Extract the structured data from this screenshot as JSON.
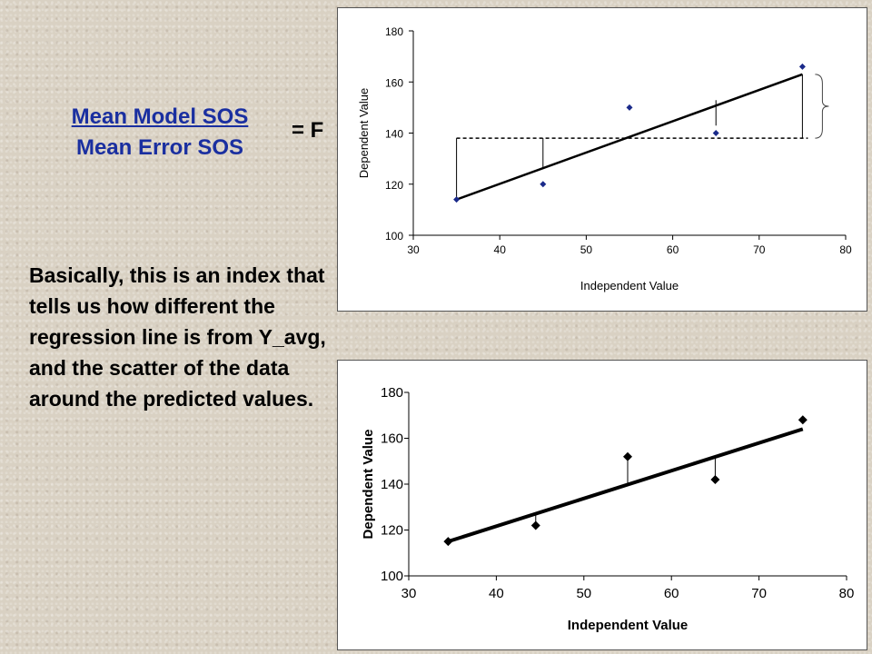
{
  "formula": {
    "numerator": "Mean Model SOS",
    "denominator": "Mean Error SOS",
    "equals": "= F"
  },
  "description": "Basically, this is an index that tells us how different the regression line is from Y_avg, and the scatter of the data around the predicted values.",
  "colors": {
    "formula_text": "#1a2fa0",
    "points": "#1a2a8a",
    "line": "#000000"
  },
  "chart_data": [
    {
      "type": "scatter",
      "title": "",
      "xlabel": "Independent Value",
      "ylabel": "Dependent Value",
      "xlim": [
        30,
        80
      ],
      "ylim": [
        100,
        180
      ],
      "xticks": [
        "30",
        "40",
        "50",
        "60",
        "70",
        "80"
      ],
      "yticks": [
        "100",
        "120",
        "140",
        "160",
        "180"
      ],
      "points": [
        {
          "x": 35,
          "y": 114
        },
        {
          "x": 45,
          "y": 120
        },
        {
          "x": 55,
          "y": 150
        },
        {
          "x": 65,
          "y": 140
        },
        {
          "x": 75,
          "y": 166
        }
      ],
      "regression_line": {
        "x": [
          35,
          75
        ],
        "y": [
          114,
          163
        ]
      },
      "mean_line": {
        "y": 138,
        "x": [
          35,
          75
        ],
        "style": "dashed"
      },
      "grid": false,
      "legend": "none"
    },
    {
      "type": "scatter",
      "title": "",
      "xlabel": "Independent Value",
      "ylabel": "Dependent Value",
      "xlim": [
        30,
        80
      ],
      "ylim": [
        100,
        180
      ],
      "xticks": [
        "30",
        "40",
        "50",
        "60",
        "70",
        "80"
      ],
      "yticks": [
        "100",
        "120",
        "140",
        "160",
        "180"
      ],
      "points": [
        {
          "x": 34.5,
          "y": 115
        },
        {
          "x": 44.5,
          "y": 122
        },
        {
          "x": 55,
          "y": 152
        },
        {
          "x": 65,
          "y": 142
        },
        {
          "x": 75,
          "y": 168
        }
      ],
      "regression_line": {
        "x": [
          34.5,
          75
        ],
        "y": [
          115,
          164
        ]
      },
      "grid": false,
      "legend": "none"
    }
  ]
}
